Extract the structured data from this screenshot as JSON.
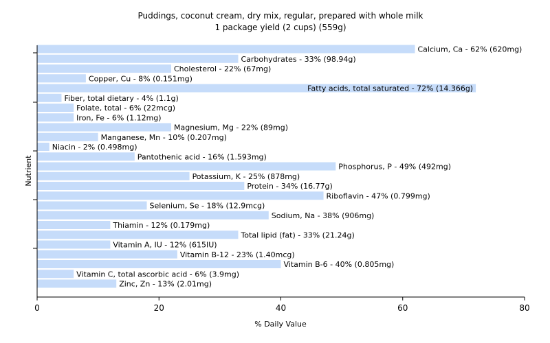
{
  "chart_data": {
    "type": "bar",
    "orientation": "horizontal",
    "title": "Puddings, coconut cream, dry mix, regular, prepared with whole milk",
    "subtitle": "1 package yield (2 cups) (559g)",
    "xlabel": "% Daily Value",
    "ylabel": "Nutrient",
    "xlim": [
      0,
      80
    ],
    "xticks": [
      "0",
      "20",
      "40",
      "60",
      "80"
    ],
    "grid": false,
    "bar_color": "#c6dcfa",
    "categories": [
      "Calcium, Ca",
      "Carbohydrates",
      "Cholesterol",
      "Copper, Cu",
      "Fatty acids, total saturated",
      "Fiber, total dietary",
      "Folate, total",
      "Iron, Fe",
      "Magnesium, Mg",
      "Manganese, Mn",
      "Niacin",
      "Pantothenic acid",
      "Phosphorus, P",
      "Potassium, K",
      "Protein",
      "Riboflavin",
      "Selenium, Se",
      "Sodium, Na",
      "Thiamin",
      "Total lipid (fat)",
      "Vitamin A, IU",
      "Vitamin B-12",
      "Vitamin B-6",
      "Vitamin C, total ascorbic acid",
      "Zinc, Zn"
    ],
    "values": [
      62,
      33,
      22,
      8,
      72,
      4,
      6,
      6,
      22,
      10,
      2,
      16,
      49,
      25,
      34,
      47,
      18,
      38,
      12,
      33,
      12,
      23,
      40,
      6,
      13
    ],
    "labels": [
      "Calcium, Ca - 62% (620mg)",
      "Carbohydrates - 33% (98.94g)",
      "Cholesterol - 22% (67mg)",
      "Copper, Cu - 8% (0.151mg)",
      "Fatty acids, total saturated - 72% (14.366g)",
      "Fiber, total dietary - 4% (1.1g)",
      "Folate, total - 6% (22mcg)",
      "Iron, Fe - 6% (1.12mg)",
      "Magnesium, Mg - 22% (89mg)",
      "Manganese, Mn - 10% (0.207mg)",
      "Niacin - 2% (0.498mg)",
      "Pantothenic acid - 16% (1.593mg)",
      "Phosphorus, P - 49% (492mg)",
      "Potassium, K - 25% (878mg)",
      "Protein - 34% (16.77g)",
      "Riboflavin - 47% (0.799mg)",
      "Selenium, Se - 18% (12.9mcg)",
      "Sodium, Na - 38% (906mg)",
      "Thiamin - 12% (0.179mg)",
      "Total lipid (fat) - 33% (21.24g)",
      "Vitamin A, IU - 12% (615IU)",
      "Vitamin B-12 - 23% (1.40mcg)",
      "Vitamin B-6 - 40% (0.805mg)",
      "Vitamin C, total ascorbic acid - 6% (3.9mg)",
      "Zinc, Zn - 13% (2.01mg)"
    ]
  }
}
